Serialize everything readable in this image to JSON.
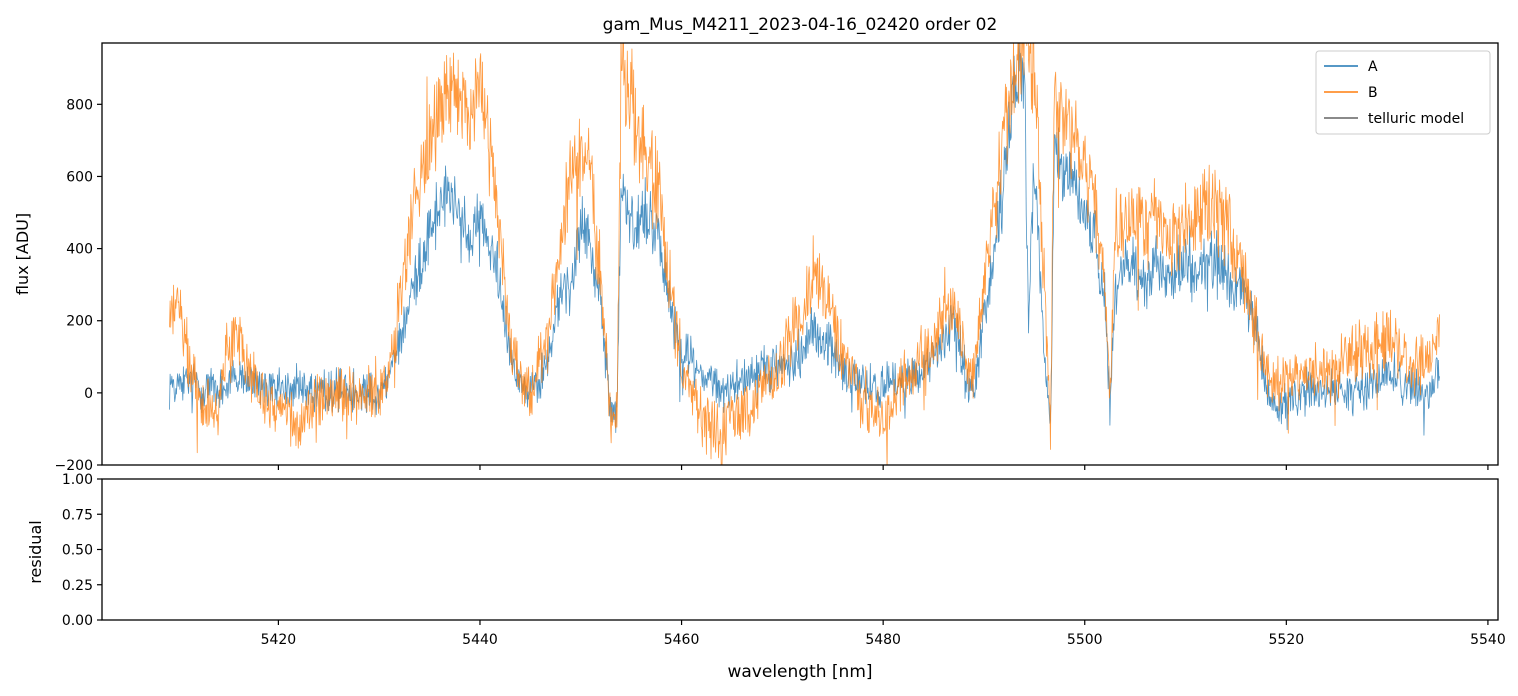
{
  "chart_data": [
    {
      "type": "line",
      "title": "gam_Mus_M4211_2023-04-16_02420  order 02",
      "xlabel": "",
      "ylabel": "flux [ADU]",
      "xlim": [
        5402.5,
        5541
      ],
      "ylim": [
        -200,
        970
      ],
      "yticks": [
        -200,
        0,
        200,
        400,
        600,
        800
      ],
      "ytick_labels": [
        "−200",
        "0",
        "200",
        "400",
        "600",
        "800"
      ],
      "xticks": [
        5420,
        5440,
        5460,
        5480,
        5500,
        5520,
        5540
      ],
      "xtick_labels_shown": false,
      "grid": false,
      "legend": {
        "placement": "top-right",
        "entries": [
          "A",
          "B",
          "telluric model"
        ]
      },
      "series": [
        {
          "name": "A",
          "color": "#1f77b4",
          "noise": 45,
          "x": [
            5409.2,
            5410,
            5412,
            5414,
            5416,
            5418,
            5420,
            5422,
            5424,
            5426,
            5428,
            5430,
            5431,
            5432,
            5433,
            5434,
            5435,
            5436,
            5437,
            5438,
            5439,
            5440,
            5441,
            5442,
            5443,
            5444,
            5445,
            5446,
            5447,
            5448,
            5449,
            5450,
            5451,
            5452,
            5453,
            5453.6,
            5454,
            5455,
            5456,
            5457,
            5458,
            5459,
            5460,
            5462,
            5464,
            5466,
            5468,
            5470,
            5472,
            5473,
            5474,
            5475,
            5476,
            5478,
            5480,
            5482,
            5484,
            5486,
            5487,
            5488,
            5489,
            5490,
            5491,
            5492,
            5493,
            5494,
            5494.4,
            5495,
            5496,
            5496.6,
            5497,
            5498,
            5499,
            5500,
            5501,
            5502,
            5502.5,
            5503,
            5504,
            5505,
            5506,
            5507,
            5508,
            5509,
            5510,
            5511,
            5512,
            5513,
            5514,
            5515,
            5516,
            5517,
            5518,
            5519,
            5520,
            5522,
            5524,
            5526,
            5528,
            5530,
            5532,
            5534,
            5535.2
          ],
          "y": [
            20,
            30,
            20,
            10,
            40,
            20,
            10,
            20,
            0,
            10,
            10,
            0,
            40,
            150,
            250,
            350,
            450,
            520,
            550,
            480,
            420,
            480,
            420,
            300,
            130,
            20,
            0,
            40,
            120,
            280,
            300,
            470,
            420,
            230,
            -40,
            -60,
            580,
            450,
            480,
            500,
            380,
            230,
            120,
            60,
            0,
            40,
            60,
            80,
            120,
            170,
            150,
            120,
            60,
            20,
            20,
            40,
            60,
            140,
            200,
            80,
            0,
            200,
            380,
            600,
            850,
            900,
            200,
            600,
            100,
            -100,
            660,
            600,
            600,
            500,
            440,
            250,
            -50,
            300,
            350,
            350,
            300,
            380,
            300,
            320,
            360,
            320,
            370,
            380,
            330,
            280,
            260,
            180,
            20,
            -60,
            -20,
            0,
            20,
            -10,
            20,
            60,
            20,
            0,
            60
          ]
        },
        {
          "name": "B",
          "color": "#ff7f0e",
          "noise": 60,
          "x": [
            5409.2,
            5410,
            5411,
            5412,
            5414,
            5415,
            5416,
            5418,
            5420,
            5422,
            5424,
            5426,
            5428,
            5430,
            5431,
            5432,
            5433,
            5434,
            5435,
            5436,
            5437,
            5438,
            5439,
            5440,
            5441,
            5442,
            5443,
            5444,
            5445,
            5446,
            5447,
            5448,
            5449,
            5450,
            5451,
            5452,
            5453,
            5453.6,
            5454,
            5455,
            5456,
            5457,
            5458,
            5459,
            5460,
            5462,
            5464,
            5466,
            5468,
            5470,
            5472,
            5473,
            5474,
            5475,
            5476,
            5478,
            5480,
            5482,
            5484,
            5486,
            5487,
            5488,
            5489,
            5490,
            5491,
            5492,
            5493,
            5494,
            5494.4,
            5495,
            5496,
            5496.6,
            5497,
            5498,
            5499,
            5500,
            5501,
            5502,
            5502.5,
            5503,
            5504,
            5505,
            5506,
            5507,
            5508,
            5509,
            5510,
            5511,
            5512,
            5513,
            5514,
            5515,
            5516,
            5517,
            5518,
            5519,
            5520,
            5522,
            5524,
            5526,
            5528,
            5530,
            5532,
            5534,
            5535.2
          ],
          "y": [
            200,
            250,
            100,
            0,
            -50,
            150,
            150,
            0,
            -50,
            -80,
            -20,
            0,
            -20,
            0,
            80,
            250,
            420,
            600,
            700,
            800,
            880,
            820,
            720,
            860,
            680,
            450,
            180,
            20,
            -20,
            100,
            220,
            430,
            600,
            650,
            600,
            300,
            -80,
            -60,
            900,
            800,
            680,
            640,
            500,
            260,
            80,
            -60,
            -120,
            -40,
            0,
            100,
            240,
            320,
            300,
            200,
            100,
            -20,
            -80,
            40,
            80,
            200,
            280,
            100,
            40,
            300,
            500,
            700,
            900,
            980,
            980,
            900,
            300,
            -100,
            900,
            800,
            700,
            620,
            540,
            300,
            -20,
            400,
            500,
            480,
            450,
            500,
            420,
            430,
            470,
            460,
            520,
            520,
            480,
            400,
            300,
            180,
            40,
            20,
            40,
            60,
            40,
            100,
            120,
            150,
            100,
            80,
            180
          ]
        },
        {
          "name": "telluric model",
          "color": "#636363",
          "x": [],
          "y": []
        }
      ]
    },
    {
      "type": "line",
      "title": "",
      "xlabel": "wavelength [nm]",
      "ylabel": "residual",
      "xlim": [
        5402.5,
        5541
      ],
      "ylim": [
        0,
        1
      ],
      "yticks": [
        0,
        0.25,
        0.5,
        0.75,
        1
      ],
      "ytick_labels": [
        "0.00",
        "0.25",
        "0.50",
        "0.75",
        "1.00"
      ],
      "xticks": [
        5420,
        5440,
        5460,
        5480,
        5500,
        5520,
        5540
      ],
      "xtick_labels": [
        "5420",
        "5440",
        "5460",
        "5480",
        "5500",
        "5520",
        "5540"
      ],
      "grid": false,
      "series": []
    }
  ]
}
